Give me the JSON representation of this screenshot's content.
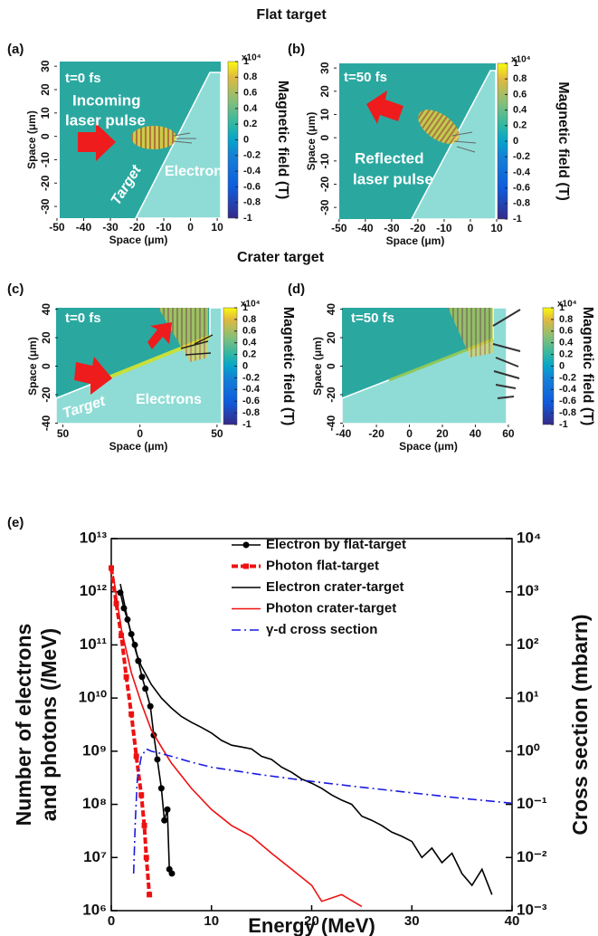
{
  "chart_data": [
    {
      "type": "field-map",
      "section_title": "Flat target",
      "panel_label": "(a)",
      "time_label": "t=0 fs",
      "annotations": [
        "Incoming",
        "laser pulse",
        "Target",
        "Electron"
      ],
      "xlabel": "Space (μm)",
      "ylabel": "Space (μm)",
      "xlim": [
        -51,
        12
      ],
      "xticks": [
        -50,
        -40,
        -30,
        -20,
        -10,
        0,
        10
      ],
      "ylim": [
        -35,
        32
      ],
      "yticks": [
        30,
        20,
        10,
        0,
        -10,
        -20,
        -30
      ],
      "colorbar": {
        "label": "Magnetic field (T)",
        "scale_label": "x10⁴",
        "lim": [
          -1,
          1
        ],
        "ticks": [
          1,
          0.8,
          0.6,
          0.4,
          0.2,
          0,
          -0.2,
          -0.4,
          -0.6,
          -0.8,
          -1
        ]
      }
    },
    {
      "type": "field-map",
      "panel_label": "(b)",
      "time_label": "t=50 fs",
      "annotations": [
        "Reflected",
        "laser pulse"
      ],
      "xlabel": "Space (μm)",
      "ylabel": "Space (μm)",
      "xlim": [
        -52,
        10
      ],
      "xticks": [
        -50,
        -40,
        -30,
        -20,
        -10,
        0,
        10
      ],
      "ylim": [
        -35,
        32
      ],
      "yticks": [
        30,
        20,
        10,
        0,
        -10,
        -20,
        -30
      ],
      "colorbar": {
        "label": "Magnetic field (T)",
        "scale_label": "x10⁴",
        "lim": [
          -1,
          1
        ],
        "ticks": [
          1,
          0.8,
          0.6,
          0.4,
          0.2,
          0,
          -0.2,
          -0.4,
          -0.6,
          -0.8,
          -1
        ]
      }
    },
    {
      "type": "field-map",
      "section_title": "Crater target",
      "panel_label": "(c)",
      "time_label": "t=0 fs",
      "annotations": [
        "Target",
        "Electrons"
      ],
      "xlabel": "Space (μm)",
      "ylabel": "Space (μm)",
      "xlim": [
        -55,
        53
      ],
      "xticks": [
        {
          "value": -50,
          "label": "50"
        },
        0,
        50
      ],
      "ylim": [
        -41,
        41
      ],
      "yticks": [
        40,
        20,
        0,
        -20,
        -40
      ],
      "colorbar": {
        "label": "Magnetic field (T)",
        "scale_label": "x10⁴",
        "lim": [
          -1,
          1
        ],
        "ticks": [
          1,
          0.8,
          0.6,
          0.4,
          0.2,
          0,
          -0.2,
          -0.4,
          -0.6,
          -0.8,
          -1
        ]
      }
    },
    {
      "type": "field-map",
      "panel_label": "(d)",
      "time_label": "t=50 fs",
      "annotations": [],
      "xlabel": "Space (μm)",
      "ylabel": "Space (μm)",
      "xlim": [
        -42,
        65
      ],
      "xticks": [
        -40,
        -20,
        0,
        20,
        40,
        60
      ],
      "ylim": [
        -41,
        41
      ],
      "yticks": [
        40,
        20,
        0,
        -20,
        -40
      ],
      "colorbar": {
        "label": "Magnetic field (T)",
        "scale_label": "x10⁴",
        "lim": [
          -1,
          1
        ],
        "ticks": [
          1,
          0.8,
          0.6,
          0.4,
          0.2,
          0,
          -0.2,
          -0.4,
          -0.6,
          -0.8,
          -1
        ]
      }
    },
    {
      "type": "line",
      "panel_label": "(e)",
      "xlabel": "Energy (MeV)",
      "ylabel": [
        "Number of electrons",
        "and photons (/MeV)"
      ],
      "y2label": "Cross section (mbarn)",
      "xlim": [
        0,
        40
      ],
      "xticks": [
        0,
        10,
        20,
        30,
        40
      ],
      "log_y": true,
      "ylim": [
        1000000.0,
        10000000000000.0
      ],
      "yticks": [
        {
          "value": 10000000000000.0,
          "label": "10¹³"
        },
        {
          "value": 1000000000000.0,
          "label": "10¹²"
        },
        {
          "value": 100000000000.0,
          "label": "10¹¹"
        },
        {
          "value": 10000000000.0,
          "label": "10¹⁰"
        },
        {
          "value": 1000000000.0,
          "label": "10⁹"
        },
        {
          "value": 100000000.0,
          "label": "10⁸"
        },
        {
          "value": 10000000.0,
          "label": "10⁷"
        },
        {
          "value": 1000000.0,
          "label": "10⁶"
        }
      ],
      "y2lim": [
        0.001,
        10000
      ],
      "y2ticks": [
        {
          "value": 10000,
          "label": "10⁴"
        },
        {
          "value": 1000,
          "label": "10³"
        },
        {
          "value": 100,
          "label": "10²"
        },
        {
          "value": 10,
          "label": "10¹"
        },
        {
          "value": 1,
          "label": "10⁰"
        },
        {
          "value": 0.1,
          "label": "10⁻¹"
        },
        {
          "value": 0.01,
          "label": "10⁻²"
        },
        {
          "value": 0.001,
          "label": "10⁻³"
        }
      ],
      "legend": "top-right",
      "series": [
        {
          "name": "Electron by flat-target",
          "color": "#000000",
          "marker": "circle",
          "linestyle": "solid",
          "x": [
            0.9,
            1.26,
            1.62,
            2.0,
            2.35,
            2.7,
            3.07,
            3.4,
            3.9,
            4.24,
            4.6,
            5.0,
            5.3,
            5.6,
            5.8,
            6.05
          ],
          "values": [
            960000000000.0,
            490000000000.0,
            300000000000.0,
            160000000000.0,
            100000000000.0,
            50000000000.0,
            25000000000.0,
            15000000000.0,
            7000000000.0,
            2000000000.0,
            700000000.0,
            200000000.0,
            50000000.0,
            80000000.0,
            6000000.0,
            5000000.0
          ]
        },
        {
          "name": "Photon flat-target",
          "color": "#ee1111",
          "marker": "square",
          "linestyle": "dashed",
          "x": [
            0,
            0.5,
            1,
            1.5,
            2,
            2.5,
            3,
            3.3,
            3.5,
            3.8
          ],
          "values": [
            2800000000000.0,
            600000000000.0,
            150000000000.0,
            25000000000.0,
            5000000000.0,
            800000000.0,
            150000000.0,
            40000000.0,
            10000000.0,
            2000000.0
          ]
        },
        {
          "name": "Electron crater-target",
          "color": "#000000",
          "linestyle": "solid",
          "x": [
            0.9,
            1.5,
            2,
            2.5,
            3,
            4,
            5,
            6,
            7,
            8,
            9,
            10,
            11,
            12,
            13,
            14,
            15,
            16,
            17,
            18,
            19,
            20,
            21,
            22,
            23,
            24,
            25,
            26,
            27,
            28,
            29,
            30,
            31,
            32,
            33,
            34,
            35,
            36,
            37,
            38
          ],
          "values": [
            1400000000000.0,
            400000000000.0,
            150000000000.0,
            70000000000.0,
            40000000000.0,
            18000000000.0,
            10000000000.0,
            6500000000.0,
            4500000000.0,
            3500000000.0,
            2800000000.0,
            2200000000.0,
            1600000000.0,
            1300000000.0,
            1200000000.0,
            1100000000.0,
            800000000.0,
            700000000.0,
            500000000.0,
            400000000.0,
            300000000.0,
            250000000.0,
            200000000.0,
            150000000.0,
            120000000.0,
            100000000.0,
            60000000.0,
            50000000.0,
            40000000.0,
            30000000.0,
            25000000.0,
            20000000.0,
            10000000.0,
            15000000.0,
            8000000.0,
            12000000.0,
            5000000.0,
            3000000.0,
            6000000.0,
            2000000.0
          ]
        },
        {
          "name": "Photon  crater-target",
          "color": "#ee1111",
          "linestyle": "solid",
          "x": [
            0.2,
            1,
            2,
            3,
            4,
            5,
            6,
            8,
            10,
            12,
            14,
            16,
            18,
            20,
            21,
            23,
            25
          ],
          "values": [
            2000000000000.0,
            200000000000.0,
            30000000000.0,
            8000000000.0,
            2500000000.0,
            1200000000.0,
            600000000.0,
            200000000.0,
            80000000.0,
            40000000.0,
            25000000.0,
            12000000.0,
            6000000.0,
            3000000.0,
            1500000.0,
            2000000.0,
            1200000.0
          ]
        },
        {
          "name": "γ-d cross section",
          "color": "#1a1adf",
          "linestyle": "dashdot",
          "axis": "y2",
          "x": [
            2.23,
            2.4,
            2.6,
            3,
            3.5,
            4,
            5,
            6,
            8,
            10,
            15,
            20,
            25,
            30,
            35,
            40
          ],
          "values": [
            0.005,
            0.05,
            0.3,
            0.8,
            1.1,
            1.0,
            0.9,
            0.8,
            0.62,
            0.5,
            0.36,
            0.27,
            0.21,
            0.165,
            0.13,
            0.105
          ]
        }
      ]
    }
  ]
}
